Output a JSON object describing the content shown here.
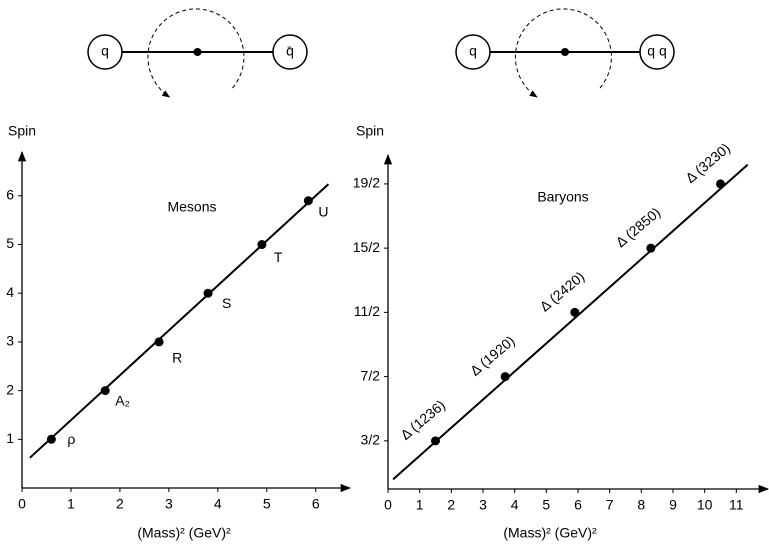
{
  "chart_data": [
    {
      "type": "scatter",
      "annotation": "Mesons",
      "xlabel": "(Mass)² (GeV)²",
      "ylabel": "Spin",
      "diagram": {
        "left": "q",
        "right": "q̄"
      },
      "x": [
        0.6,
        1.7,
        2.8,
        3.8,
        4.9,
        5.85
      ],
      "values": [
        1,
        2,
        3,
        4,
        5,
        5.9
      ],
      "point_labels": [
        "ρ",
        "A₂",
        "R",
        "S",
        "T",
        "U"
      ],
      "fit_line": {
        "x": [
          0.16,
          6.26
        ],
        "y": [
          0.62,
          6.24
        ]
      },
      "color": "#000000",
      "xlim": [
        0,
        6.7
      ],
      "ylim": [
        0,
        6.9
      ],
      "xticks": [
        0,
        1,
        2,
        3,
        4,
        5,
        6
      ],
      "yticks": [
        1,
        2,
        3,
        4,
        5,
        6
      ]
    },
    {
      "type": "scatter",
      "annotation": "Baryons",
      "xlabel": "(Mass)² (GeV)²",
      "ylabel": "Spin",
      "diagram": {
        "left": "q",
        "right": "q q"
      },
      "x": [
        1.5,
        3.7,
        5.9,
        8.3,
        10.5
      ],
      "values": [
        1.5,
        3.5,
        5.5,
        7.5,
        9.5
      ],
      "point_labels": [
        "Δ (1236)",
        "Δ (1920)",
        "Δ (2420)",
        "Δ (2850)",
        "Δ (3230)"
      ],
      "fit_line": {
        "x": [
          0.16,
          11.36
        ],
        "y": [
          0.3,
          10.1
        ]
      },
      "color": "#000000",
      "xlim": [
        0,
        12
      ],
      "ylim": [
        0,
        10.4
      ],
      "xticks": [
        0,
        1,
        2,
        3,
        4,
        5,
        6,
        7,
        8,
        9,
        10,
        11
      ],
      "yticks": [
        {
          "value": 1.5,
          "label": "3/2"
        },
        {
          "value": 3.5,
          "label": "7/2"
        },
        {
          "value": 5.5,
          "label": "11/2"
        },
        {
          "value": 7.5,
          "label": "15/2"
        },
        {
          "value": 9.5,
          "label": "19/2"
        }
      ]
    }
  ]
}
